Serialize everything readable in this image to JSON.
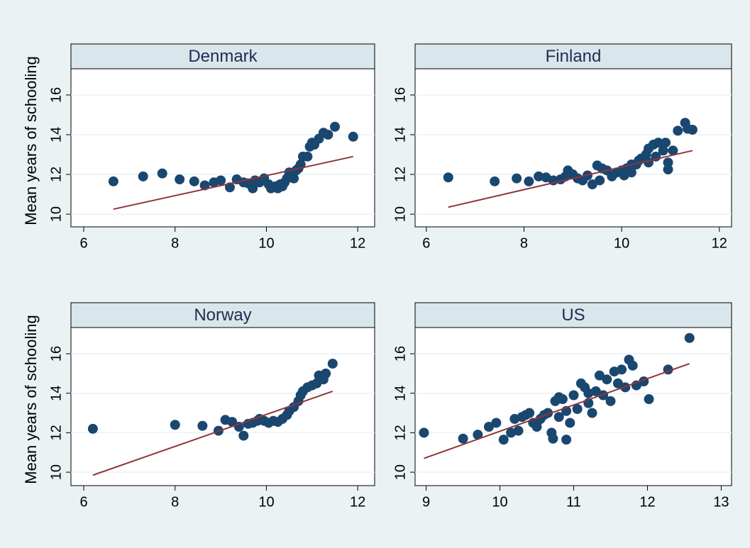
{
  "chart_data": [
    {
      "type": "scatter",
      "title": "Denmark",
      "ylabel": "Mean years of schooling",
      "color": "#1a476f",
      "fit_color": "#90353b",
      "grid": true,
      "xlim": [
        5.72,
        12.37
      ],
      "ylim": [
        9.36,
        17.32
      ],
      "xticks": [
        6,
        8,
        10,
        12
      ],
      "yticks": [
        10,
        12,
        14,
        16
      ],
      "x": [
        6.65,
        7.3,
        7.72,
        8.1,
        8.42,
        8.65,
        8.85,
        9.0,
        9.2,
        9.35,
        9.5,
        9.6,
        9.7,
        9.75,
        9.85,
        9.95,
        10.05,
        10.1,
        10.2,
        10.25,
        10.3,
        10.35,
        10.4,
        10.45,
        10.5,
        10.6,
        10.65,
        10.7,
        10.75,
        10.8,
        10.9,
        10.95,
        11.0,
        11.05,
        11.15,
        11.25,
        11.35,
        11.5,
        11.9
      ],
      "values": [
        11.65,
        11.9,
        12.05,
        11.75,
        11.65,
        11.45,
        11.6,
        11.7,
        11.35,
        11.75,
        11.6,
        11.55,
        11.3,
        11.7,
        11.6,
        11.8,
        11.5,
        11.3,
        11.4,
        11.3,
        11.5,
        11.4,
        11.6,
        11.8,
        12.1,
        11.8,
        12.2,
        12.3,
        12.5,
        12.9,
        12.9,
        13.4,
        13.6,
        13.5,
        13.8,
        14.1,
        14.0,
        14.4,
        13.9
      ],
      "fit": {
        "x": [
          6.65,
          11.9
        ],
        "values": [
          10.25,
          12.9
        ]
      }
    },
    {
      "type": "scatter",
      "title": "Finland",
      "color": "#1a476f",
      "fit_color": "#90353b",
      "grid": true,
      "xlim": [
        5.77,
        12.25
      ],
      "ylim": [
        9.36,
        17.32
      ],
      "xticks": [
        6,
        8,
        10,
        12
      ],
      "yticks": [
        10,
        12,
        14,
        16
      ],
      "x": [
        6.45,
        7.4,
        7.85,
        8.1,
        8.3,
        8.45,
        8.6,
        8.75,
        8.85,
        8.9,
        9.0,
        9.1,
        9.2,
        9.3,
        9.4,
        9.5,
        9.55,
        9.6,
        9.7,
        9.8,
        9.9,
        10.0,
        10.05,
        10.1,
        10.2,
        10.3,
        10.35,
        10.4,
        10.5,
        10.55,
        10.65,
        10.7,
        10.75,
        10.85,
        10.9,
        10.95,
        10.95,
        11.05,
        11.15,
        11.3,
        11.35,
        11.45,
        10.55,
        10.2
      ],
      "values": [
        11.85,
        11.65,
        11.8,
        11.65,
        11.9,
        11.85,
        11.7,
        11.75,
        11.9,
        12.2,
        12.0,
        11.8,
        11.7,
        11.95,
        11.5,
        12.45,
        11.7,
        12.3,
        12.2,
        11.9,
        12.1,
        12.2,
        11.95,
        12.3,
        12.1,
        12.5,
        12.7,
        12.8,
        13.0,
        13.3,
        13.5,
        12.9,
        13.6,
        13.2,
        13.6,
        12.6,
        12.25,
        13.2,
        14.2,
        14.6,
        14.3,
        14.25,
        12.6,
        12.5
      ],
      "fit": {
        "x": [
          6.45,
          11.45
        ],
        "values": [
          10.35,
          13.2
        ]
      }
    },
    {
      "type": "scatter",
      "title": "Norway",
      "ylabel": "Mean years of schooling",
      "color": "#1a476f",
      "fit_color": "#90353b",
      "grid": true,
      "xlim": [
        5.72,
        12.37
      ],
      "ylim": [
        9.32,
        17.33
      ],
      "xticks": [
        6,
        8,
        10,
        12
      ],
      "yticks": [
        10,
        12,
        14,
        16
      ],
      "x": [
        6.2,
        8.0,
        8.6,
        8.95,
        9.1,
        9.25,
        9.4,
        9.5,
        9.6,
        9.7,
        9.8,
        9.85,
        9.95,
        10.05,
        10.15,
        10.25,
        10.35,
        10.45,
        10.5,
        10.6,
        10.7,
        10.75,
        10.8,
        10.9,
        11.0,
        11.1,
        11.15,
        11.25,
        11.3,
        11.45
      ],
      "values": [
        12.2,
        12.4,
        12.35,
        12.1,
        12.65,
        12.55,
        12.3,
        11.85,
        12.45,
        12.5,
        12.6,
        12.7,
        12.6,
        12.5,
        12.6,
        12.55,
        12.7,
        12.9,
        13.1,
        13.3,
        13.6,
        13.9,
        14.1,
        14.3,
        14.4,
        14.5,
        14.9,
        14.7,
        15.0,
        15.5
      ],
      "fit": {
        "x": [
          6.2,
          11.45
        ],
        "values": [
          9.85,
          14.1
        ]
      }
    },
    {
      "type": "scatter",
      "title": "US",
      "color": "#1a476f",
      "fit_color": "#90353b",
      "grid": true,
      "xlim": [
        8.85,
        13.14
      ],
      "ylim": [
        9.32,
        17.33
      ],
      "xticks": [
        9,
        10,
        11,
        12,
        13
      ],
      "yticks": [
        10,
        12,
        14,
        16
      ],
      "x": [
        8.97,
        9.5,
        9.7,
        9.85,
        9.95,
        10.05,
        10.15,
        10.2,
        10.25,
        10.3,
        10.35,
        10.4,
        10.45,
        10.5,
        10.55,
        10.6,
        10.65,
        10.7,
        10.72,
        10.75,
        10.8,
        10.8,
        10.85,
        10.9,
        10.95,
        11.0,
        11.05,
        11.1,
        11.15,
        11.2,
        11.25,
        11.3,
        11.35,
        11.4,
        11.45,
        11.5,
        11.55,
        11.6,
        11.65,
        11.7,
        11.75,
        11.8,
        11.85,
        11.95,
        12.02,
        12.28,
        12.57,
        10.5,
        10.9,
        11.2
      ],
      "values": [
        12.0,
        11.7,
        11.9,
        12.3,
        12.5,
        11.65,
        12.0,
        12.7,
        12.1,
        12.8,
        12.9,
        13.0,
        12.5,
        12.3,
        12.7,
        12.9,
        13.0,
        12.0,
        11.7,
        13.6,
        13.8,
        12.8,
        13.7,
        11.65,
        12.5,
        13.9,
        13.2,
        14.5,
        14.3,
        13.5,
        13.0,
        14.1,
        14.9,
        13.9,
        14.7,
        13.6,
        15.1,
        14.5,
        15.2,
        14.3,
        15.7,
        15.4,
        14.4,
        14.6,
        13.7,
        15.2,
        16.8,
        12.5,
        13.1,
        14.0
      ],
      "fit": {
        "x": [
          8.97,
          12.57
        ],
        "values": [
          10.7,
          15.5
        ]
      }
    }
  ]
}
